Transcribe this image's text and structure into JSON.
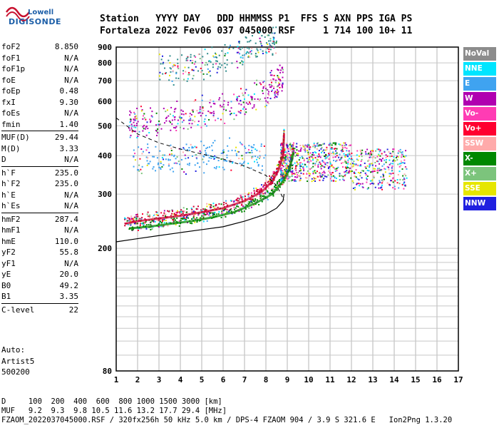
{
  "logo": {
    "line1": "Lowell",
    "line2": "DIGISONDE"
  },
  "header": {
    "line1": "Station   YYYY DAY   DDD HHMMSS P1  FFS S AXN PPS IGA PS",
    "line2": "Fortaleza 2022 Fev06 037 045000 RSF     1 714 100 10+ 11"
  },
  "params": [
    [
      [
        "foF2",
        "8.850"
      ],
      [
        "foF1",
        "N/A"
      ],
      [
        "foF1p",
        "N/A"
      ],
      [
        "foE",
        "N/A"
      ],
      [
        "foEp",
        "0.48"
      ],
      [
        "fxI",
        "9.30"
      ],
      [
        "foEs",
        "N/A"
      ],
      [
        "fmin",
        "1.40"
      ]
    ],
    [
      [
        "MUF(D)",
        "29.44"
      ],
      [
        "M(D)",
        "3.33"
      ],
      [
        "D",
        "N/A"
      ]
    ],
    [
      [
        "h`F",
        "235.0"
      ],
      [
        "h`F2",
        "235.0"
      ],
      [
        "h`E",
        "N/A"
      ],
      [
        "h`Es",
        "N/A"
      ]
    ],
    [
      [
        "hmF2",
        "287.4"
      ],
      [
        "hmF1",
        "N/A"
      ],
      [
        "hmE",
        "110.0"
      ],
      [
        "yF2",
        "55.8"
      ],
      [
        "yF1",
        "N/A"
      ],
      [
        "yE",
        "20.0"
      ],
      [
        "B0",
        "49.2"
      ],
      [
        "B1",
        "3.35"
      ]
    ],
    [
      [
        "C-level",
        "22"
      ]
    ]
  ],
  "auto": [
    "Auto:",
    "Artist5",
    "500200"
  ],
  "bottom": {
    "d_line": "D     100  200  400  600  800 1000 1500 3000 [km]",
    "muf_line": "MUF   9.2  9.3  9.8 10.5 11.6 13.2 17.7 29.4 [MHz]",
    "footer": "FZAOM_2022037045000.RSF / 320fx256h 50 kHz 5.0 km / DPS-4 FZAOM 904 / 3.9 S 321.6 E   Ion2Png 1.3.20"
  },
  "legend": [
    {
      "label": "NoVal",
      "color": "#8c8c8c"
    },
    {
      "label": "NNE",
      "color": "#00e5ff"
    },
    {
      "label": "E",
      "color": "#3fa3f0"
    },
    {
      "label": "W",
      "color": "#b000b0"
    },
    {
      "label": "Vo-",
      "color": "#ff3cb4"
    },
    {
      "label": "Vo+",
      "color": "#ff0030"
    },
    {
      "label": "SSW",
      "color": "#ffaaaa"
    },
    {
      "label": "X-",
      "color": "#008800"
    },
    {
      "label": "X+",
      "color": "#7cc47c"
    },
    {
      "label": "SSE",
      "color": "#e6e600"
    },
    {
      "label": "NNW",
      "color": "#2020e0"
    }
  ],
  "chart_data": {
    "type": "scatter",
    "xlabel": "",
    "ylabel": "",
    "xlim": [
      1,
      17
    ],
    "ylim": [
      80,
      900
    ],
    "xticks": [
      1,
      2,
      3,
      4,
      5,
      6,
      7,
      8,
      9,
      10,
      11,
      12,
      13,
      14,
      15,
      16,
      17
    ],
    "yticks": [
      80,
      200,
      300,
      400,
      500,
      600,
      700,
      800,
      900
    ],
    "grid": true,
    "scale": "log-height",
    "traces": [
      {
        "name": "O trace (profile)",
        "color": "#cc0033",
        "x": [
          1.4,
          2,
          3,
          4,
          5,
          6,
          7,
          7.8,
          8.3,
          8.6,
          8.8,
          8.85
        ],
        "y": [
          240,
          245,
          250,
          255,
          262,
          270,
          285,
          305,
          330,
          360,
          400,
          470
        ]
      },
      {
        "name": "X trace",
        "color": "#008800",
        "x": [
          1.6,
          2.5,
          3.5,
          4.5,
          5.5,
          6.5,
          7.5,
          8.3,
          8.8,
          9.1,
          9.3
        ],
        "y": [
          232,
          235,
          240,
          245,
          252,
          262,
          280,
          300,
          330,
          360,
          410
        ]
      },
      {
        "name": "second hop",
        "color": "#b000b0",
        "x": [
          1.6,
          2,
          3,
          4,
          5,
          6,
          7,
          8,
          8.5,
          8.8
        ],
        "y": [
          480,
          485,
          495,
          508,
          525,
          545,
          575,
          620,
          655,
          690
        ]
      },
      {
        "name": "third hop",
        "color": "#2e8b8b",
        "x": [
          3,
          4,
          5,
          6,
          7,
          8,
          8.5
        ],
        "y": [
          720,
          735,
          760,
          790,
          830,
          875,
          900
        ]
      },
      {
        "name": "oblique E",
        "color": "#3fa3f0",
        "x": [
          1.8,
          3,
          4,
          5,
          6,
          7,
          8
        ],
        "y": [
          370,
          372,
          375,
          378,
          382,
          385,
          388
        ]
      }
    ],
    "profile_solid": {
      "x": [
        1,
        2,
        3,
        4,
        5,
        6,
        7,
        8,
        8.5,
        8.8,
        8.85
      ],
      "y": [
        210,
        215,
        220,
        225,
        230,
        235,
        245,
        258,
        270,
        285,
        300
      ]
    },
    "profile_dashed": {
      "x": [
        1,
        2,
        3,
        4,
        5,
        6,
        7,
        8,
        8.5,
        8.85
      ],
      "y": [
        530,
        470,
        440,
        420,
        405,
        390,
        370,
        345,
        320,
        287
      ]
    }
  }
}
